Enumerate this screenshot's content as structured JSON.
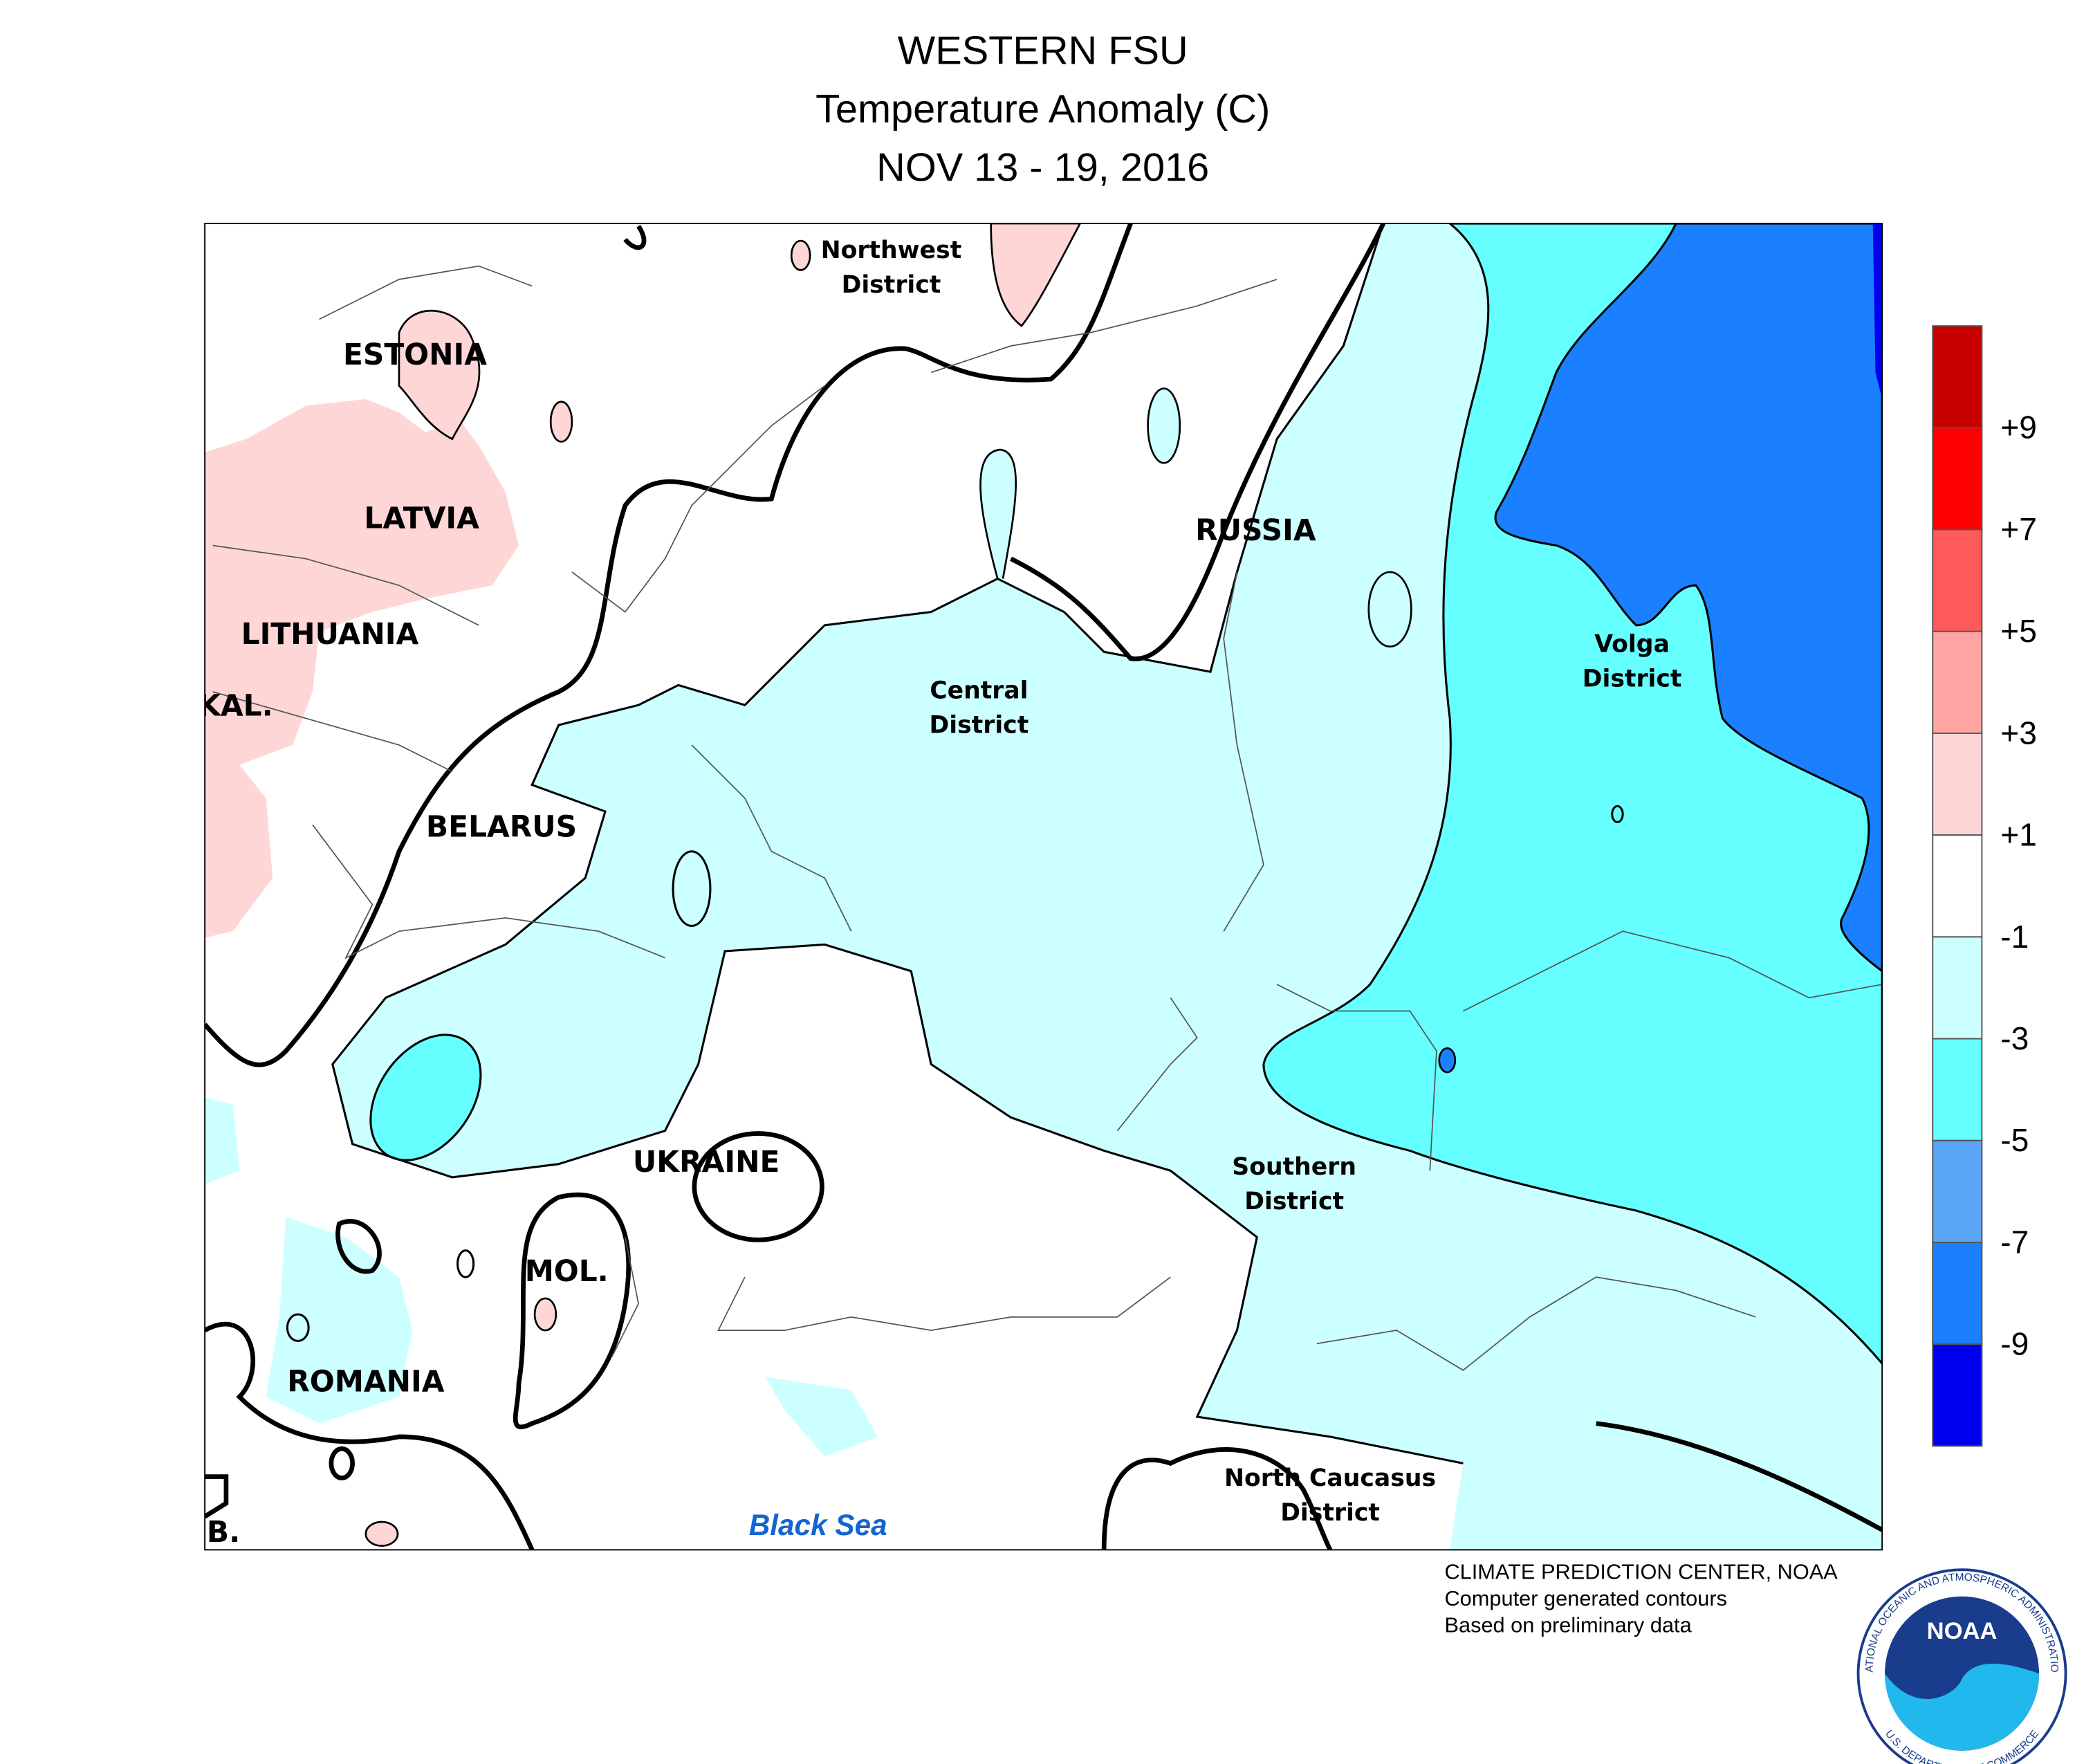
{
  "header": {
    "title": [
      "WESTERN FSU",
      "Temperature Anomaly (C)",
      "NOV 13 - 19, 2016"
    ]
  },
  "map_labels": [
    "Northwest",
    "District",
    "ESTONIA",
    "LATVIA",
    "LITHUANIA",
    "KAL.",
    "BELARUS",
    "RUSSIA",
    "Central",
    "District",
    "Volga",
    "District",
    "UKRAINE",
    "Southern",
    "District",
    "MOL.",
    "ROMANIA",
    "North Caucasus",
    "District",
    "Black Sea",
    "B."
  ],
  "legend": {
    "labels": [
      "+9",
      "+7",
      "+5",
      "+3",
      "+1",
      "-1",
      "-3",
      "-5",
      "-7",
      "-9"
    ],
    "colors": [
      "#c80000",
      "#ff0000",
      "#ff5a5a",
      "#ffa3a3",
      "#ffd6d6",
      "#ffffff",
      "#ccffff",
      "#66ffff",
      "#5aa5f5",
      "#1a80ff",
      "#0000f0"
    ]
  },
  "footer": [
    "CLIMATE PREDICTION CENTER, NOAA",
    "Computer generated contours",
    "Based on preliminary data"
  ],
  "logo": {
    "name": "NOAA",
    "ring_top": "NATIONAL OCEANIC AND ATMOSPHERIC ADMINISTRATION",
    "ring_bottom": "U.S. DEPARTMENT OF COMMERCE"
  }
}
